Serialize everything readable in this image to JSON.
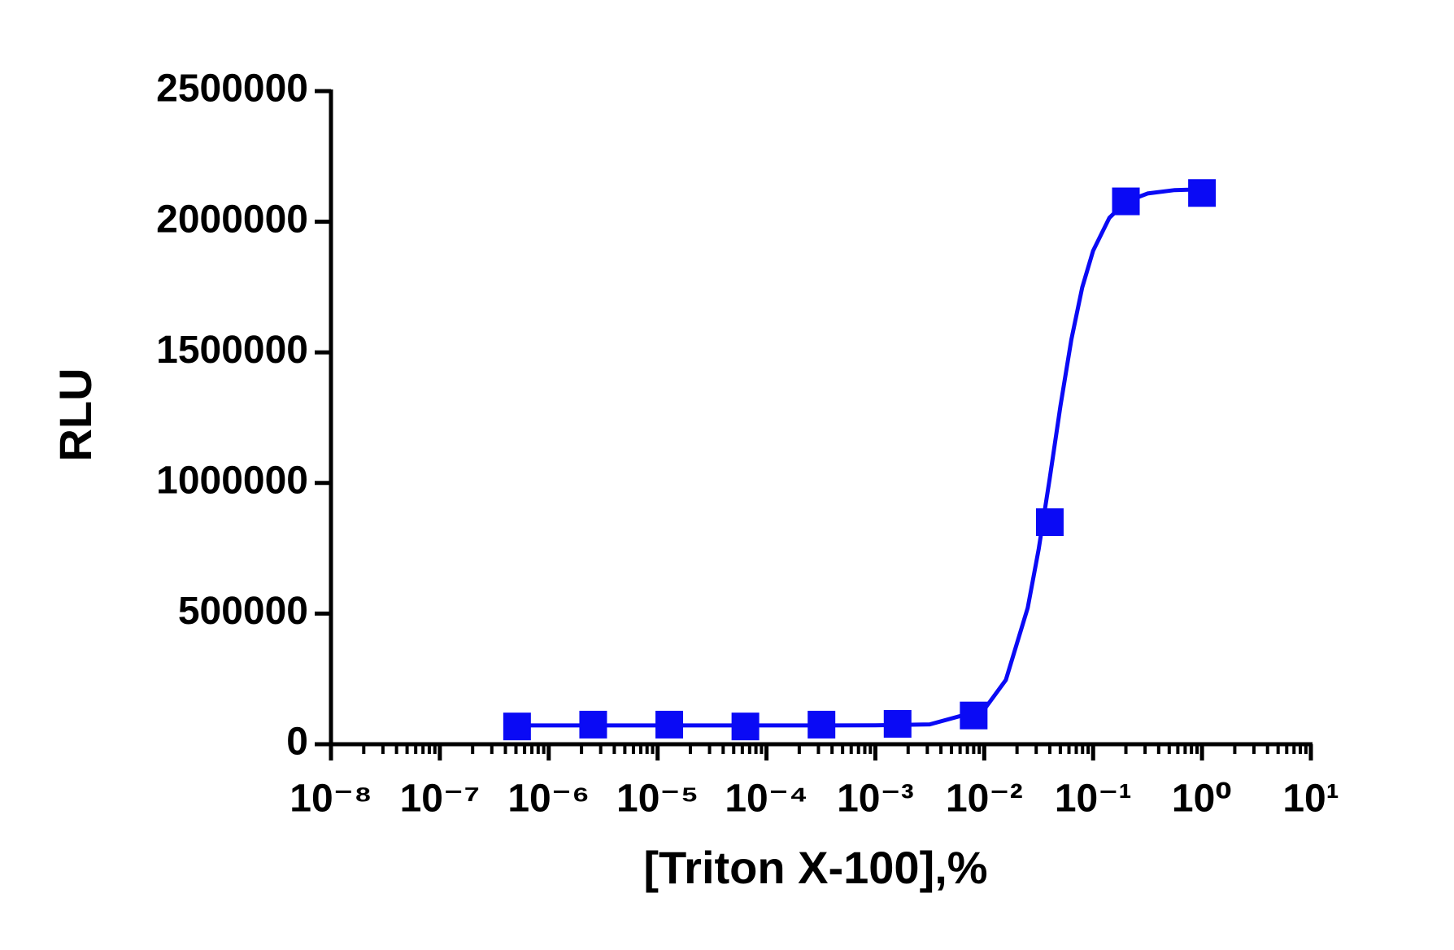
{
  "chart_data": {
    "type": "scatter",
    "x_label": "[Triton X-100],%",
    "y_label": "RLU",
    "log_x": true,
    "minor_ticks": true,
    "xlim": [
      1e-08,
      10
    ],
    "xticks": [
      {
        "value": 1e-08,
        "label": "10⁻⁸"
      },
      {
        "value": 1e-07,
        "label": "10⁻⁷"
      },
      {
        "value": 1e-06,
        "label": "10⁻⁶"
      },
      {
        "value": 1e-05,
        "label": "10⁻⁵"
      },
      {
        "value": 0.0001,
        "label": "10⁻⁴"
      },
      {
        "value": 0.001,
        "label": "10⁻³"
      },
      {
        "value": 0.01,
        "label": "10⁻²"
      },
      {
        "value": 0.1,
        "label": "10⁻¹"
      },
      {
        "value": 1,
        "label": "10⁰"
      },
      {
        "value": 10,
        "label": "10¹"
      }
    ],
    "ylim": [
      0,
      2500000
    ],
    "yticks": [
      0,
      500000,
      1000000,
      1500000,
      2000000,
      2500000
    ],
    "series": [
      {
        "color": "#0a0af5",
        "marker": "square",
        "x": [
          5.12e-07,
          2.56e-06,
          1.28e-05,
          6.4e-05,
          0.00032,
          0.0016,
          0.008,
          0.04,
          0.2,
          1
        ],
        "values": [
          68000,
          75000,
          75000,
          68000,
          75000,
          78000,
          110000,
          850000,
          2078000,
          2110000
        ]
      }
    ],
    "fit": {
      "color": "#0a0af5",
      "x": [
        5.12e-07,
        0.0001,
        0.001,
        0.00316,
        0.01,
        0.0158,
        0.0251,
        0.0316,
        0.0398,
        0.0501,
        0.0631,
        0.0794,
        0.1,
        0.141,
        0.2,
        0.316,
        0.562,
        1
      ],
      "values": [
        72000,
        72000,
        72250,
        76000,
        133000,
        246000,
        522000,
        745000,
        1014000,
        1294000,
        1548000,
        1748000,
        1889000,
        2015000,
        2076000,
        2108000,
        2121000,
        2124000
      ]
    }
  }
}
